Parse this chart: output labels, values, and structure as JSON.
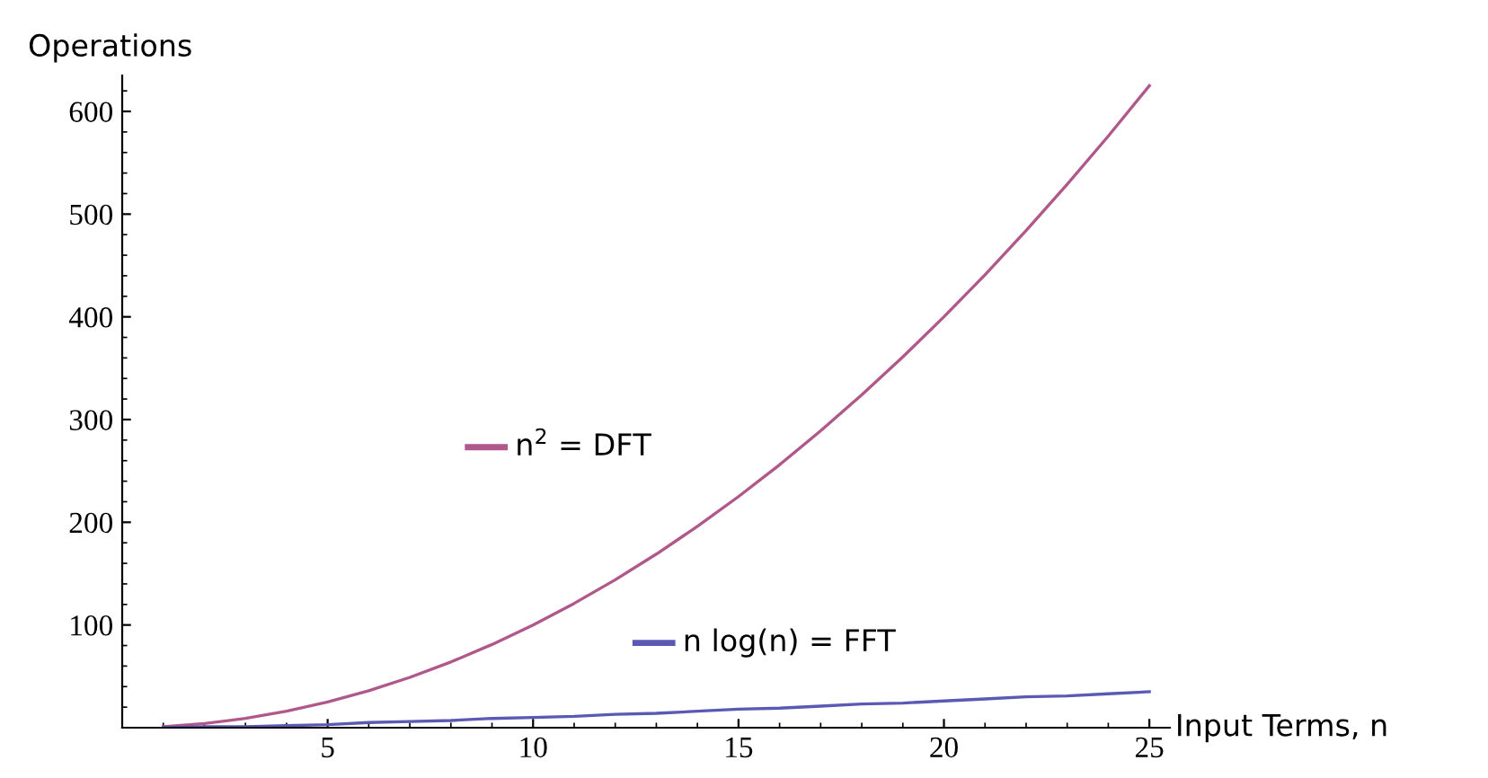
{
  "chart_data": {
    "type": "line",
    "xlabel": "Input Terms, n",
    "ylabel": "Operations",
    "x": [
      1,
      2,
      3,
      4,
      5,
      6,
      7,
      8,
      9,
      10,
      11,
      12,
      13,
      14,
      15,
      16,
      17,
      18,
      19,
      20,
      21,
      22,
      23,
      24,
      25
    ],
    "series": [
      {
        "name": "n$^{2}$ = DFT",
        "color": "#b0588a",
        "values": [
          1,
          4,
          9,
          16,
          25,
          36,
          49,
          64,
          81,
          100,
          121,
          144,
          169,
          196,
          225,
          256,
          289,
          324,
          361,
          400,
          441,
          484,
          529,
          576,
          625
        ]
      },
      {
        "name": "n log(n) = FFT",
        "color": "#5a5ab4",
        "values": [
          0,
          1,
          1,
          2,
          3,
          5,
          6,
          7,
          9,
          10,
          11,
          13,
          14,
          16,
          18,
          19,
          21,
          23,
          24,
          26,
          28,
          30,
          31,
          33,
          35
        ]
      }
    ],
    "xlim": [
      0,
      25.5
    ],
    "ylim": [
      0,
      635
    ],
    "xticks": [
      5,
      10,
      15,
      20,
      25
    ],
    "yticks": [
      100,
      200,
      300,
      400,
      500,
      600
    ],
    "grid": false,
    "legend": "center",
    "marker": "none",
    "line_style": "solid"
  }
}
